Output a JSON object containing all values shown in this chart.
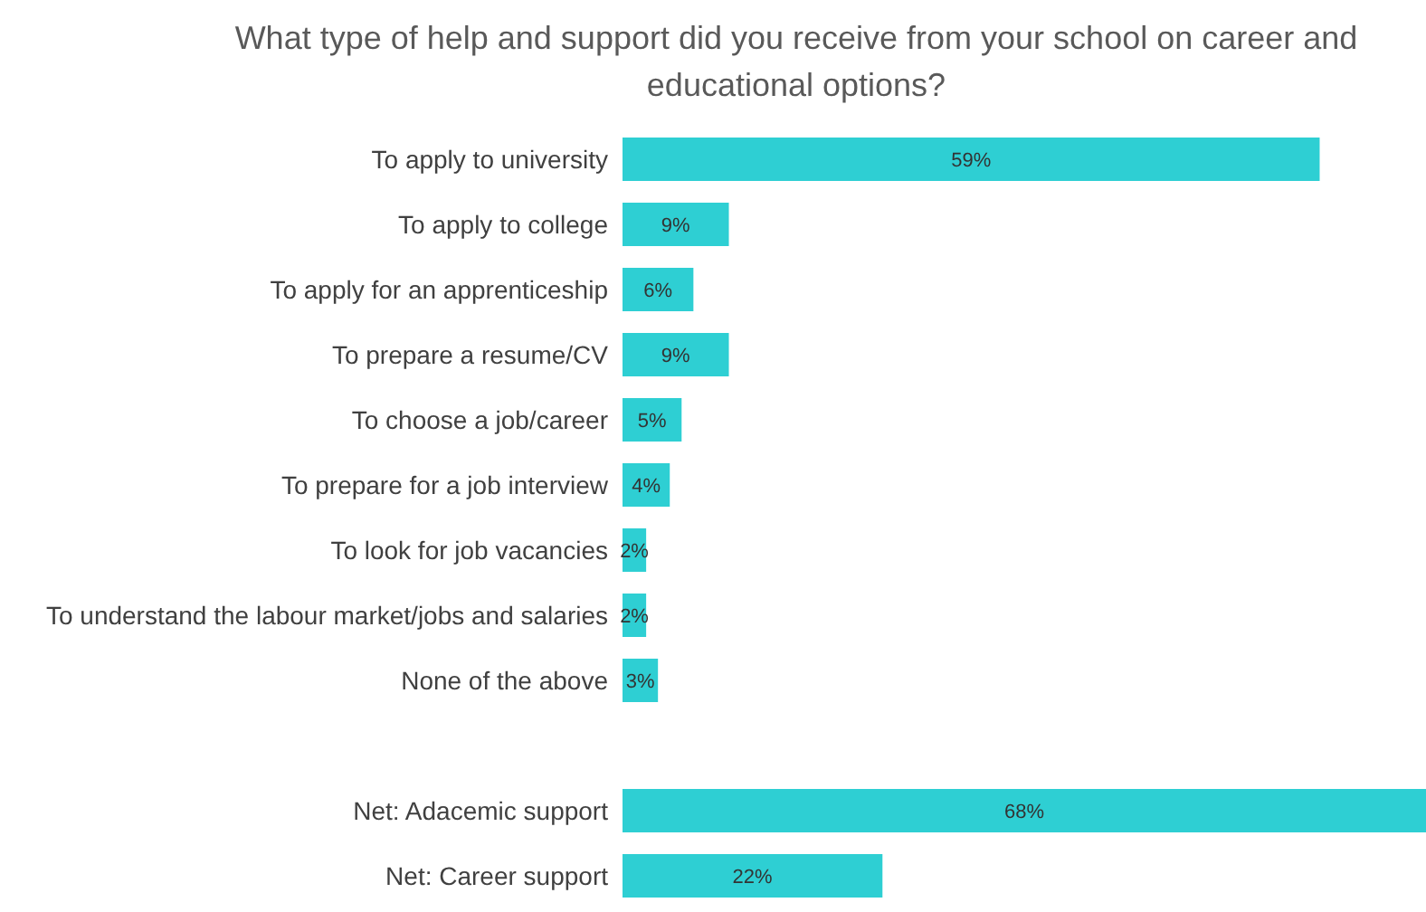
{
  "chart_data": {
    "type": "bar",
    "orientation": "horizontal",
    "title": "What type of help and support did you receive from your school on career and educational options?",
    "categories": [
      "To apply to university",
      "To apply to college",
      "To apply for an apprenticeship",
      "To prepare a resume/CV",
      "To choose a job/career",
      "To prepare for a job interview",
      "To look for job vacancies",
      "To understand the labour market/jobs and salaries",
      "None of the above",
      null,
      "Net: Adacemic support",
      "Net: Career support"
    ],
    "values": [
      59,
      9,
      6,
      9,
      5,
      4,
      2,
      2,
      3,
      null,
      68,
      22
    ],
    "value_labels": [
      "59%",
      "9%",
      "6%",
      "9%",
      "5%",
      "4%",
      "2%",
      "2%",
      "3%",
      null,
      "68%",
      "22%"
    ],
    "color": "#2ecfd3",
    "grid": false
  }
}
